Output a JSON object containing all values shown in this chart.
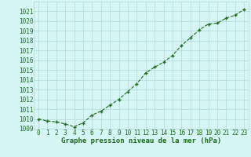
{
  "x": [
    0,
    1,
    2,
    3,
    4,
    5,
    6,
    7,
    8,
    9,
    10,
    11,
    12,
    13,
    14,
    15,
    16,
    17,
    18,
    19,
    20,
    21,
    22,
    23
  ],
  "y": [
    1010.0,
    1009.8,
    1009.7,
    1009.5,
    1009.2,
    1009.6,
    1010.4,
    1010.8,
    1011.4,
    1012.0,
    1012.8,
    1013.6,
    1014.7,
    1015.3,
    1015.8,
    1016.5,
    1017.5,
    1018.3,
    1019.1,
    1019.7,
    1019.8,
    1020.3,
    1020.6,
    1021.2
  ],
  "xlabel": "Graphe pression niveau de la mer (hPa)",
  "ylim": [
    1009,
    1022
  ],
  "xlim": [
    -0.5,
    23.5
  ],
  "yticks": [
    1009,
    1010,
    1011,
    1012,
    1013,
    1014,
    1015,
    1016,
    1017,
    1018,
    1019,
    1020,
    1021
  ],
  "xticks": [
    0,
    1,
    2,
    3,
    4,
    5,
    6,
    7,
    8,
    9,
    10,
    11,
    12,
    13,
    14,
    15,
    16,
    17,
    18,
    19,
    20,
    21,
    22,
    23
  ],
  "line_color": "#1a6b1a",
  "marker_color": "#1a6b1a",
  "bg_color": "#d6f5f5",
  "grid_color": "#b0d8d8",
  "axis_label_color": "#1a6b1a",
  "tick_color": "#1a6b1a",
  "xlabel_fontsize": 6.5,
  "tick_fontsize": 5.5
}
